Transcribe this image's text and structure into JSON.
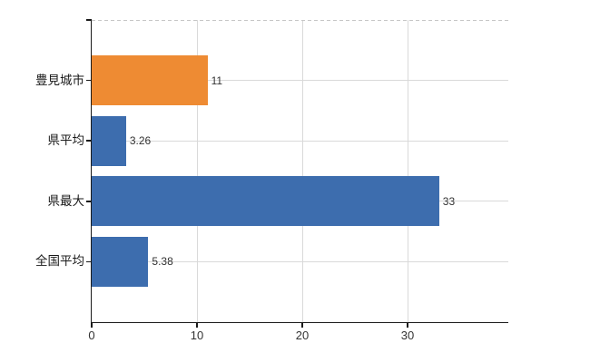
{
  "chart_data": {
    "type": "bar",
    "orientation": "horizontal",
    "title": "",
    "xlabel": "",
    "ylabel": "",
    "categories": [
      "豊見城市",
      "県平均",
      "県最大",
      "全国平均"
    ],
    "values": [
      11,
      3.26,
      33,
      5.38
    ],
    "value_labels": [
      "11",
      "3.26",
      "33",
      "5.38"
    ],
    "bar_colors": [
      "#EE8B33",
      "#3D6DAE",
      "#3D6DAE",
      "#3D6DAE"
    ],
    "x_ticks": [
      0,
      10,
      20,
      30
    ],
    "x_tick_labels": [
      "0",
      "10",
      "20",
      "30"
    ],
    "xlim": [
      0,
      39.6
    ],
    "grid": "on",
    "legend": "none"
  },
  "colors": {
    "highlight_bar": "#EE8B33",
    "default_bar": "#3D6DAE",
    "gridline": "#D9D9D9",
    "top_border": "#C6C6C6",
    "axis": "#1A1A1A",
    "value_text": "#333333",
    "category_text": "#1A1A1A",
    "background": "#FFFFFF"
  }
}
